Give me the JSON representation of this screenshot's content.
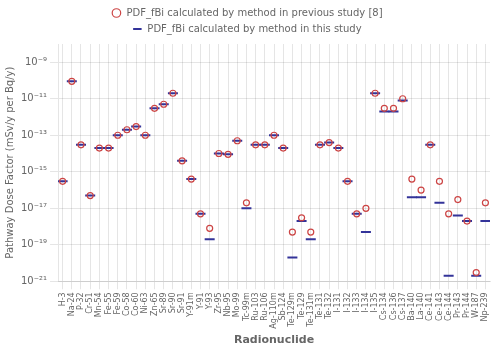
{
  "chart_data": {
    "type": "scatter",
    "xlabel": "Radionuclide",
    "ylabel": "Pathway Dose Factor (mSv/y per Bq/y)",
    "categories": [
      "H-3",
      "Na-24",
      "P-32",
      "Cr-51",
      "Mn-54",
      "Fe-55",
      "Fe-59",
      "Co-58",
      "Co-60",
      "Ni-63",
      "Zn-65",
      "Sr-89",
      "Sr-90",
      "Sr-91",
      "Y-91m",
      "Y-91",
      "Y-93",
      "Zr-95",
      "Nb-95",
      "Mo-99",
      "Tc-99m",
      "Ru-103",
      "Ru-106",
      "Ag-110m",
      "Sb-124",
      "Te-129m",
      "Te-129",
      "Te-131m",
      "Te-131",
      "Te-132",
      "I-131",
      "I-132",
      "I-133",
      "I-134",
      "I-135",
      "Cs-134",
      "Cs-136",
      "Cs-137",
      "Ba-140",
      "La-140",
      "Ce-141",
      "Ce-143",
      "Ce-144",
      "Pr-143",
      "Pr-144",
      "W-187",
      "Np-239"
    ],
    "series": [
      {
        "name": "PDF_fBi calculated by method in previous study [8]",
        "color": "#cc4444",
        "marker": "circle",
        "values": [
          3e-16,
          9e-11,
          3e-14,
          5e-17,
          2e-14,
          2e-14,
          1e-13,
          2e-13,
          3e-13,
          1e-13,
          3e-12,
          5e-12,
          2e-11,
          4e-15,
          4e-16,
          5e-18,
          8e-19,
          1e-14,
          9e-15,
          5e-14,
          2e-17,
          3e-14,
          3e-14,
          1e-13,
          2e-14,
          5e-19,
          3e-18,
          5e-19,
          3e-14,
          4e-14,
          2e-14,
          3e-16,
          5e-18,
          1e-17,
          2e-11,
          3e-12,
          3e-12,
          1e-11,
          4e-16,
          1e-16,
          3e-14,
          3e-16,
          5e-18,
          3e-17,
          2e-18,
          3e-21,
          2e-17
        ]
      },
      {
        "name": "PDF_fBi calculated by method in this study",
        "color": "#333399",
        "marker": "dash",
        "values": [
          3e-16,
          9e-11,
          3e-14,
          5e-17,
          2e-14,
          2e-14,
          1e-13,
          2e-13,
          3e-13,
          1e-13,
          3e-12,
          5e-12,
          2e-11,
          4e-15,
          4e-16,
          5e-18,
          2e-19,
          1e-14,
          9e-15,
          5e-14,
          1e-17,
          3e-14,
          3e-14,
          1e-13,
          2e-14,
          2e-20,
          2e-18,
          2e-19,
          3e-14,
          4e-14,
          2e-14,
          3e-16,
          5e-18,
          5e-19,
          2e-11,
          2e-12,
          2e-12,
          8e-12,
          4e-17,
          4e-17,
          3e-14,
          2e-17,
          2e-21,
          4e-18,
          2e-18,
          2e-21,
          2e-18
        ]
      }
    ],
    "log": "y",
    "ylim": [
      1e-21,
      1e-08
    ],
    "yticks": [
      {
        "value": 1e-21,
        "label": "10⁻²¹"
      },
      {
        "value": 1e-19,
        "label": "10⁻¹⁹"
      },
      {
        "value": 1e-17,
        "label": "10⁻¹⁷"
      },
      {
        "value": 1e-15,
        "label": "10⁻¹⁵"
      },
      {
        "value": 1e-13,
        "label": "10⁻¹³"
      },
      {
        "value": 1e-11,
        "label": "10⁻¹¹"
      },
      {
        "value": 1e-09,
        "label": "10⁻⁹"
      }
    ],
    "grid": true,
    "legend": "top"
  }
}
